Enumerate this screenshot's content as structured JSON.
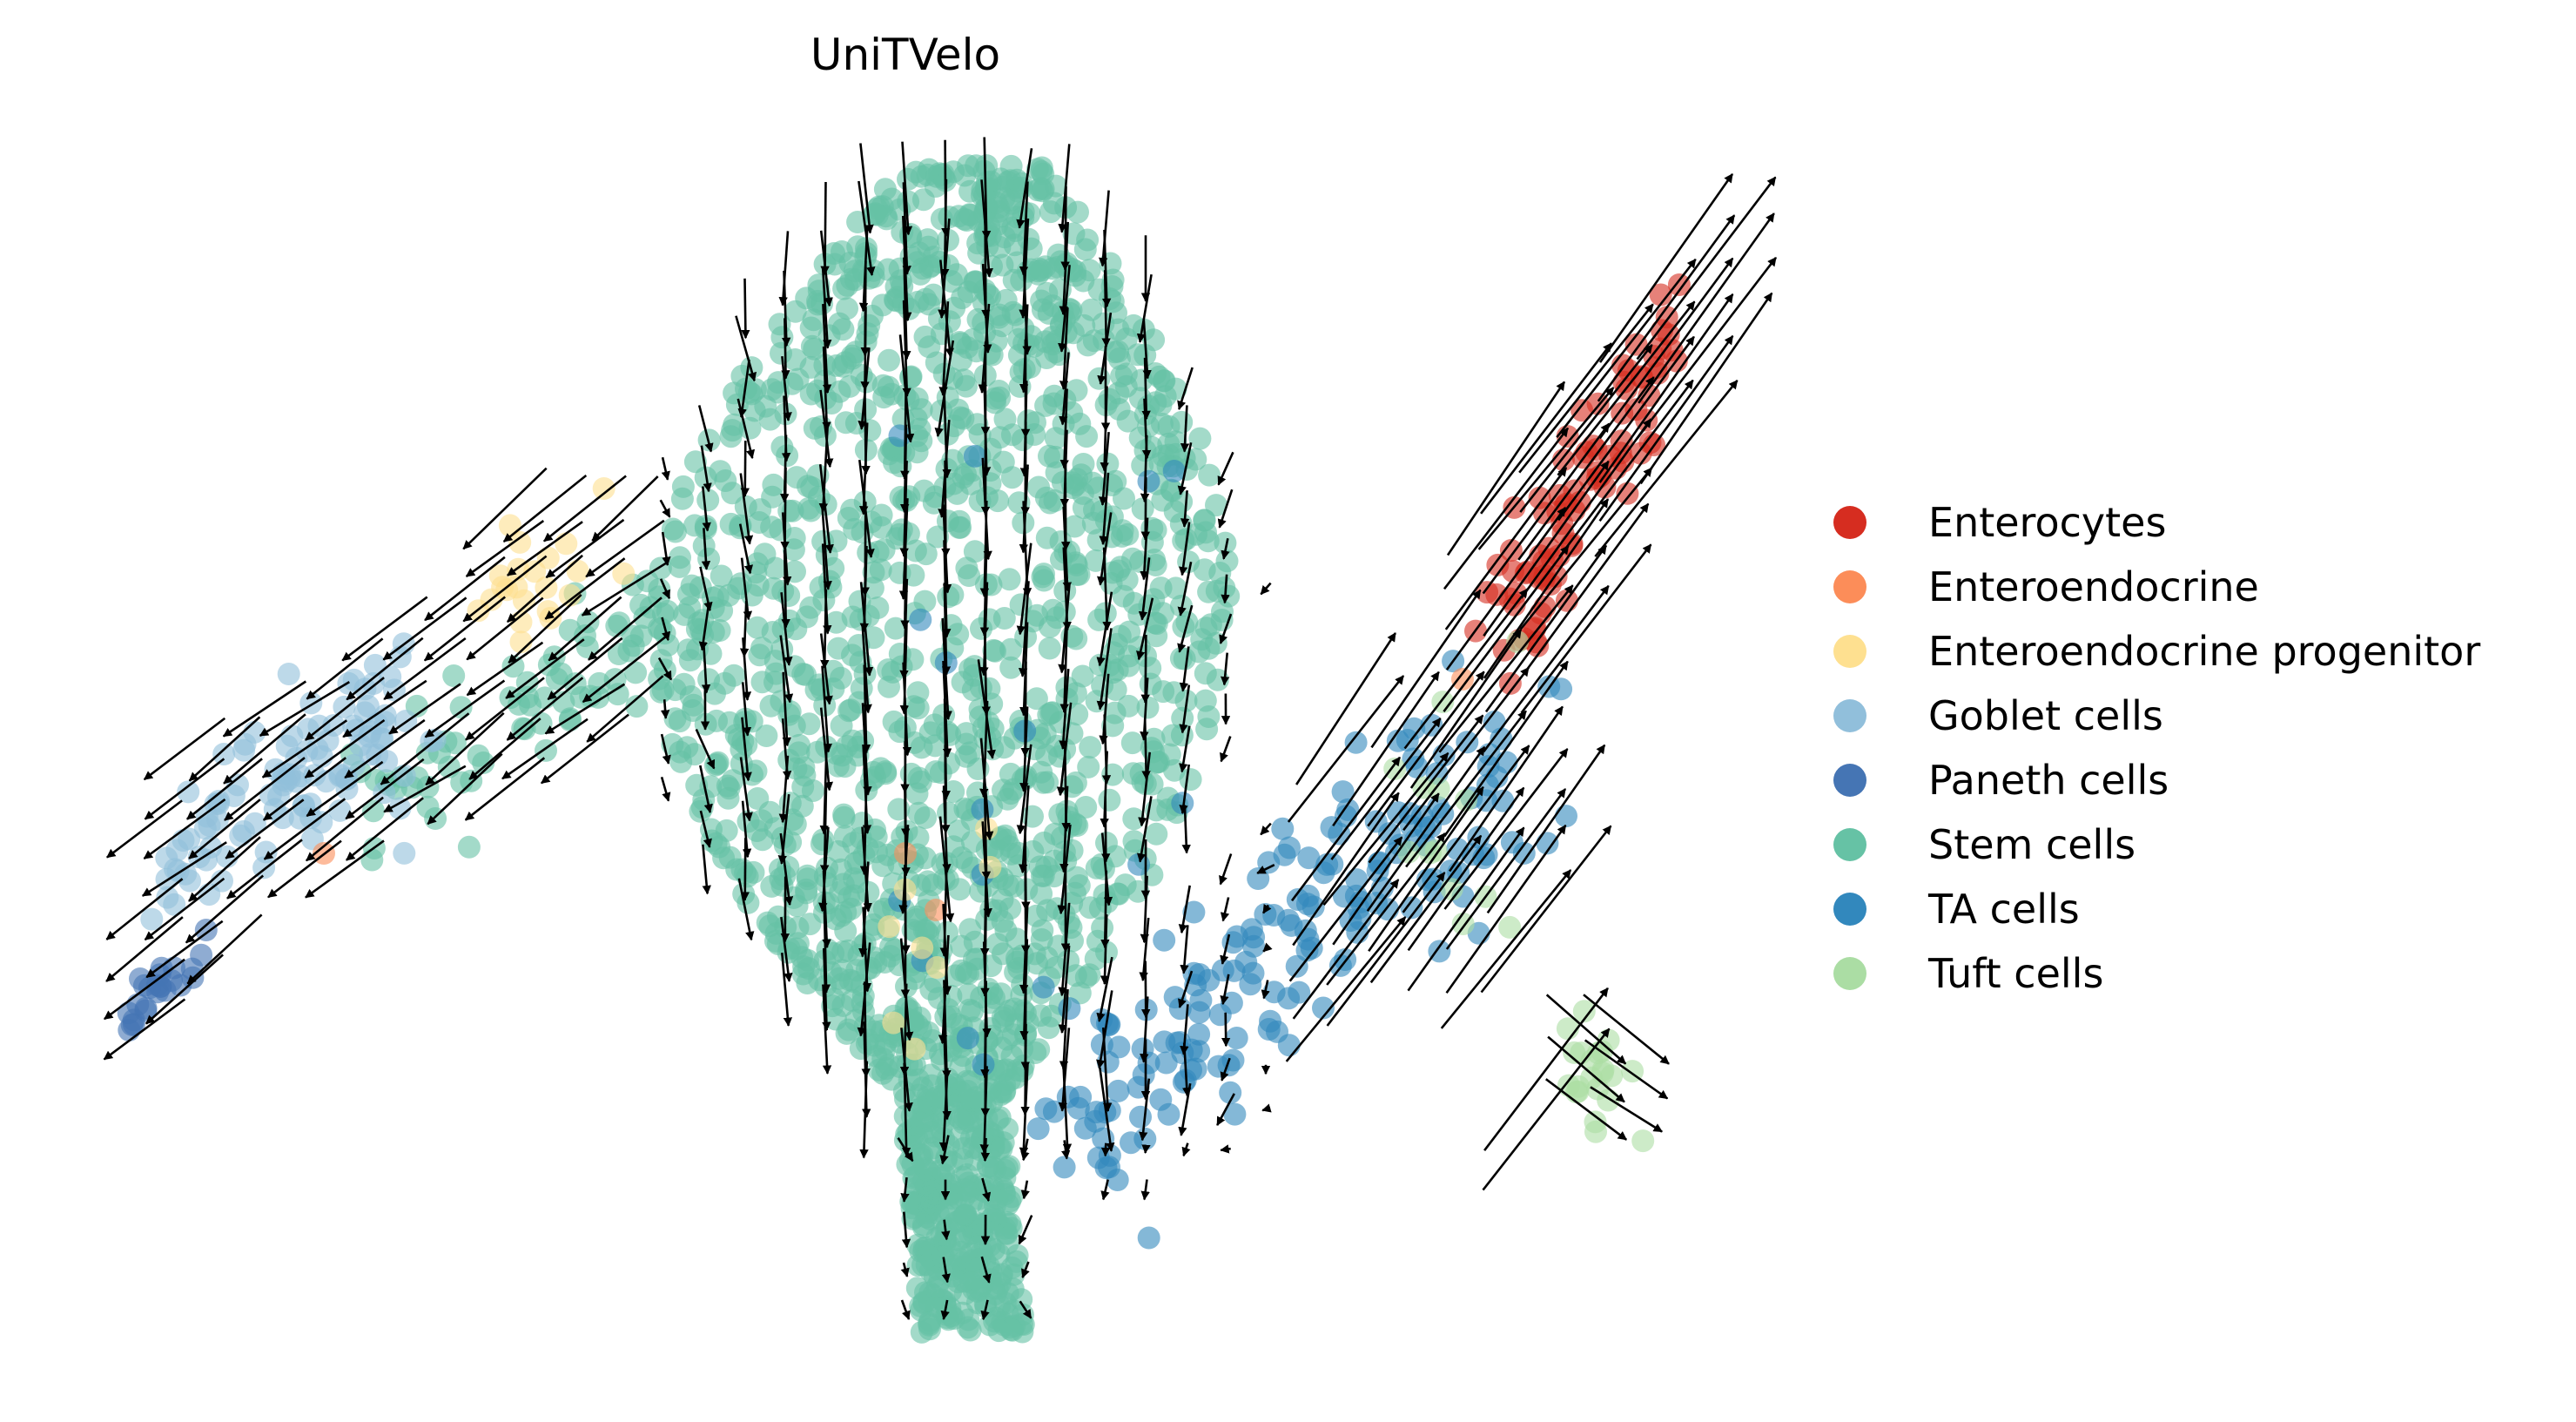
{
  "chart_data": {
    "type": "scatter",
    "title": "UniTVelo",
    "xlabel": "",
    "ylabel": "",
    "axes_visible": false,
    "grid": false,
    "legend_position": "right",
    "overlay": "velocity arrows (stream grid)",
    "point_alpha": 0.6,
    "series": [
      {
        "name": "Enterocytes",
        "color": "#d62d20",
        "approx_points": 90
      },
      {
        "name": "Enteroendocrine",
        "color": "#fc8d59",
        "approx_points": 4
      },
      {
        "name": "Enteroendocrine progenitor",
        "color": "#fee090",
        "approx_points": 30
      },
      {
        "name": "Goblet cells",
        "color": "#91bfdb",
        "approx_points": 110
      },
      {
        "name": "Paneth cells",
        "color": "#4575b4",
        "approx_points": 25
      },
      {
        "name": "Stem cells",
        "color": "#66c2a5",
        "approx_points": 1800
      },
      {
        "name": "TA cells",
        "color": "#3288bd",
        "approx_points": 180
      },
      {
        "name": "Tuft cells",
        "color": "#abdda4",
        "approx_points": 35
      }
    ]
  }
}
